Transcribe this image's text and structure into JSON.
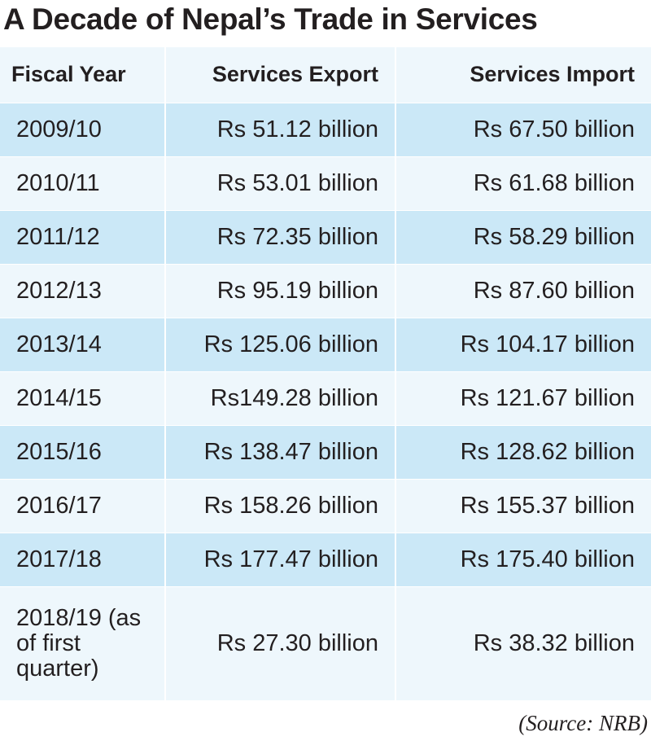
{
  "title": "A Decade of Nepal’s Trade in Services",
  "source": "(Source: NRB)",
  "chart_data": {
    "type": "table",
    "title": "A Decade of Nepal’s Trade in Services",
    "columns": [
      "Fiscal Year",
      "Services Export",
      "Services Import"
    ],
    "rows": [
      {
        "year": "2009/10",
        "export": "Rs 51.12 billion",
        "import": "Rs 67.50 billion"
      },
      {
        "year": "2010/11",
        "export": "Rs 53.01 billion",
        "import": "Rs 61.68 billion"
      },
      {
        "year": "2011/12",
        "export": "Rs 72.35 billion",
        "import": "Rs 58.29 billion"
      },
      {
        "year": "2012/13",
        "export": "Rs 95.19 billion",
        "import": "Rs 87.60 billion"
      },
      {
        "year": "2013/14",
        "export": "Rs 125.06 billion",
        "import": "Rs 104.17 billion"
      },
      {
        "year": "2014/15",
        "export": "Rs149.28 billion",
        "import": "Rs 121.67 billion"
      },
      {
        "year": "2015/16",
        "export": "Rs 138.47 billion",
        "import": "Rs 128.62 billion"
      },
      {
        "year": "2016/17",
        "export": "Rs 158.26 billion",
        "import": "Rs 155.37 billion"
      },
      {
        "year": "2017/18",
        "export": "Rs 177.47 billion",
        "import": "Rs 175.40 billion"
      },
      {
        "year": "2018/19 (as of first quarter)",
        "export": "Rs 27.30 billion",
        "import": "Rs 38.32 billion"
      }
    ],
    "source": "(Source: NRB)"
  },
  "colors": {
    "row_dark": "#cbe8f7",
    "row_light": "#eef7fc",
    "text": "#231f20"
  }
}
